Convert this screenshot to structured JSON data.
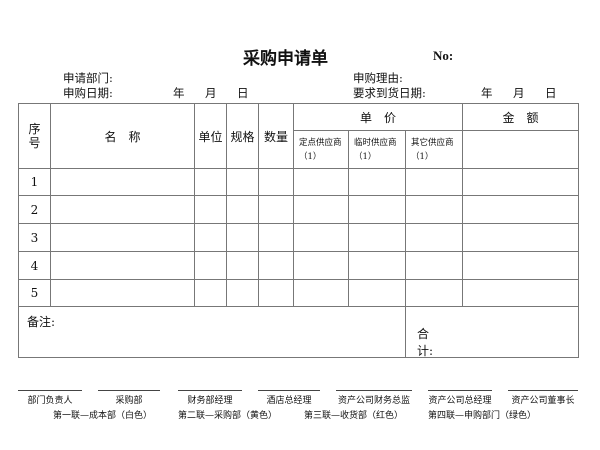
{
  "title": "采购申请单",
  "no_label": "No:",
  "header": {
    "dept_label": "申请部门:",
    "date_label": "申购日期:",
    "year": "年",
    "month": "月",
    "day": "日",
    "reason_label": "申购理由:",
    "delivery_label": "要求到货日期:"
  },
  "table": {
    "col_seq": "序号",
    "col_name": "名　称",
    "col_unit": "单位",
    "col_spec": "规格",
    "col_qty": "数量",
    "col_price": "单　价",
    "col_amount": "金　额",
    "price_sub": [
      "定点供应商　（1）",
      "临时供应商　（1）",
      "其它供应商　（1）"
    ],
    "rows": [
      "1",
      "2",
      "3",
      "4",
      "5"
    ],
    "remark_label": "备注:",
    "total_label": "合计:"
  },
  "signatures": [
    "部门负责人",
    "采购部",
    "财务部经理",
    "酒店总经理",
    "资产公司财务总监",
    "资产公司总经理",
    "资产公司董事长"
  ],
  "copies": [
    "第一联—成本部（白色）",
    "第二联—采购部（黄色）",
    "第三联—收货部（红色）",
    "第四联—申购部门（绿色）"
  ]
}
